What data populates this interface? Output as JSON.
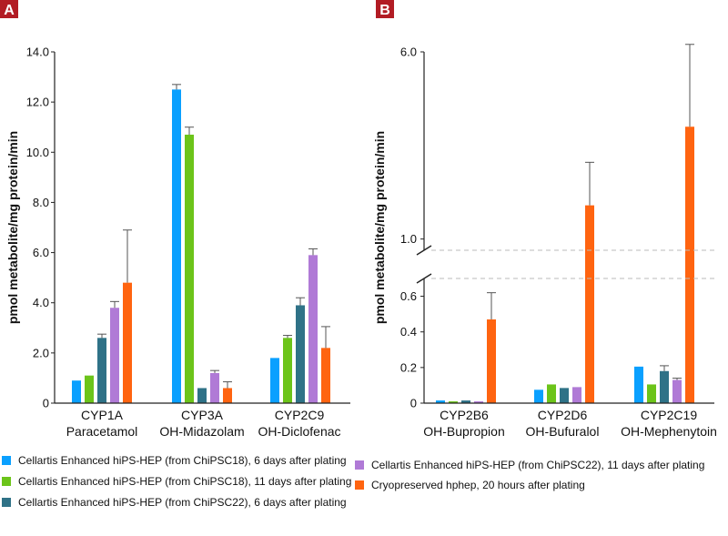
{
  "panels": [
    {
      "label": "A"
    },
    {
      "label": "B"
    }
  ],
  "colors": {
    "s18_6d": "#0aa0ff",
    "s18_11d": "#6cc41a",
    "s22_6d": "#2f7287",
    "s22_11d": "#b07ad6",
    "hphep": "#ff6410"
  },
  "legend": [
    {
      "key": "s18_6d",
      "label": "Cellartis Enhanced hiPS-HEP (from ChiPSC18), 6 days after plating"
    },
    {
      "key": "s18_11d",
      "label": "Cellartis Enhanced hiPS-HEP (from ChiPSC18), 11 days after plating"
    },
    {
      "key": "s22_6d",
      "label": "Cellartis Enhanced hiPS-HEP (from ChiPSC22), 6 days after plating"
    },
    {
      "key": "s22_11d",
      "label": "Cellartis Enhanced hiPS-HEP (from ChiPSC22), 11 days after plating"
    },
    {
      "key": "hphep",
      "label": "Cryopreserved hphep, 20 hours after plating"
    }
  ],
  "chart_data": [
    {
      "type": "bar",
      "ylabel": "pmol metabolite/mg protein/min",
      "ylim": [
        0,
        14
      ],
      "yticks": [
        "0",
        "2.0",
        "4.0",
        "6.0",
        "8.0",
        "10.0",
        "12.0",
        "14.0"
      ],
      "categories": [
        [
          "CYP1A",
          "Paracetamol"
        ],
        [
          "CYP3A",
          "OH-Midazolam"
        ],
        [
          "CYP2C9",
          "OH-Diclofenac"
        ]
      ],
      "series": [
        {
          "name": "Cellartis Enhanced hiPS-HEP (from ChiPSC18), 6 days after plating",
          "key": "s18_6d",
          "values": [
            0.9,
            12.5,
            1.8
          ],
          "errors": [
            0,
            0.2,
            0
          ]
        },
        {
          "name": "Cellartis Enhanced hiPS-HEP (from ChiPSC18), 11 days after plating",
          "key": "s18_11d",
          "values": [
            1.1,
            10.7,
            2.6
          ],
          "errors": [
            0,
            0.3,
            0.1
          ]
        },
        {
          "name": "Cellartis Enhanced hiPS-HEP (from ChiPSC22), 6 days after plating",
          "key": "s22_6d",
          "values": [
            2.6,
            0.6,
            3.9
          ],
          "errors": [
            0.15,
            0,
            0.3
          ]
        },
        {
          "name": "Cellartis Enhanced hiPS-HEP (from ChiPSC22), 11 days after plating",
          "key": "s22_11d",
          "values": [
            3.8,
            1.2,
            5.9
          ],
          "errors": [
            0.25,
            0.1,
            0.25
          ]
        },
        {
          "name": "Cryopreserved hphep, 20 hours after plating",
          "key": "hphep",
          "values": [
            4.8,
            0.6,
            2.2
          ],
          "errors": [
            2.1,
            0.25,
            0.85
          ]
        }
      ]
    },
    {
      "type": "bar",
      "ylabel": "pmol metabolite/mg protein/min",
      "broken_axis": true,
      "lower_ylim": [
        0,
        0.7
      ],
      "lower_yticks": [
        "0",
        "0.2",
        "0.4",
        "0.6"
      ],
      "upper_ylim": [
        0.7,
        6.0
      ],
      "upper_yticks": [
        "1.0",
        "6.0"
      ],
      "categories": [
        [
          "CYP2B6",
          "OH-Bupropion"
        ],
        [
          "CYP2D6",
          "OH-Bufuralol"
        ],
        [
          "CYP2C19",
          "OH-Mephenytoin"
        ]
      ],
      "series": [
        {
          "name": "Cellartis Enhanced hiPS-HEP (from ChiPSC18), 6 days after plating",
          "key": "s18_6d",
          "values": [
            0.015,
            0.075,
            0.205
          ],
          "errors": [
            0,
            0,
            0
          ]
        },
        {
          "name": "Cellartis Enhanced hiPS-HEP (from ChiPSC18), 11 days after plating",
          "key": "s18_11d",
          "values": [
            0.01,
            0.105,
            0.105
          ],
          "errors": [
            0,
            0,
            0
          ]
        },
        {
          "name": "Cellartis Enhanced hiPS-HEP (from ChiPSC22), 6 days after plating",
          "key": "s22_6d",
          "values": [
            0.015,
            0.085,
            0.18
          ],
          "errors": [
            0,
            0,
            0.03
          ]
        },
        {
          "name": "Cellartis Enhanced hiPS-HEP (from ChiPSC22), 11 days after plating",
          "key": "s22_11d",
          "values": [
            0.01,
            0.09,
            0.13
          ],
          "errors": [
            0,
            0,
            0.01
          ]
        },
        {
          "name": "Cryopreserved hphep, 20 hours after plating",
          "key": "hphep",
          "values": [
            0.47,
            1.9,
            4.0
          ],
          "errors": [
            0.15,
            1.15,
            2.2
          ]
        }
      ]
    }
  ]
}
